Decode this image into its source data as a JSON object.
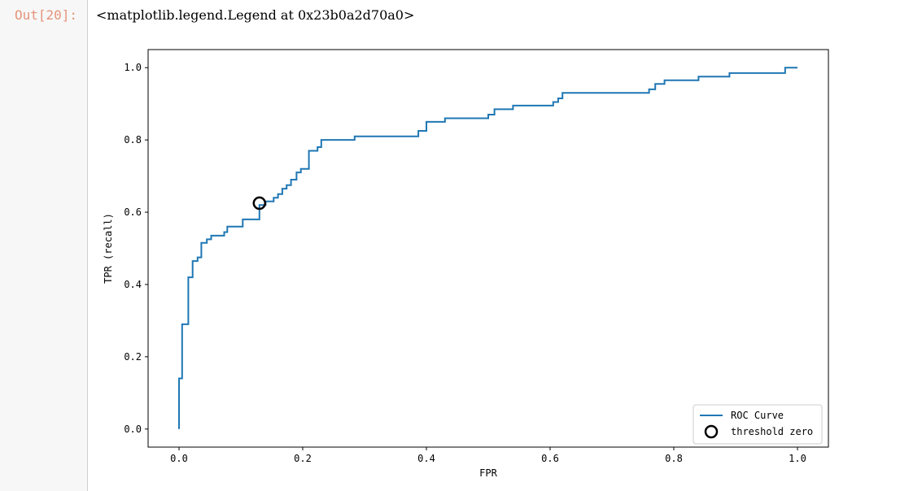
{
  "notebook": {
    "prompt_label": "Out[20]:",
    "output_repr": "<matplotlib.legend.Legend at 0x23b0a2d70a0>"
  },
  "chart_data": {
    "type": "line",
    "xlabel": "FPR",
    "ylabel": "TPR (recall)",
    "xlim": [
      -0.05,
      1.05
    ],
    "ylim": [
      -0.05,
      1.05
    ],
    "xticks": [
      0.0,
      0.2,
      0.4,
      0.6,
      0.8,
      1.0
    ],
    "yticks": [
      0.0,
      0.2,
      0.4,
      0.6,
      0.8,
      1.0
    ],
    "tick_labels_x": [
      "0.0",
      "0.2",
      "0.4",
      "0.6",
      "0.8",
      "1.0"
    ],
    "tick_labels_y": [
      "0.0",
      "0.2",
      "0.4",
      "0.6",
      "0.8",
      "1.0"
    ],
    "grid": false,
    "legend": {
      "position": "lower-right",
      "entries": [
        "ROC Curve",
        "threshold zero"
      ]
    },
    "series": [
      {
        "name": "ROC Curve",
        "kind": "step-line",
        "color": "#1f77b4",
        "points": [
          [
            0.0,
            0.0
          ],
          [
            0.0,
            0.14
          ],
          [
            0.005,
            0.14
          ],
          [
            0.005,
            0.29
          ],
          [
            0.015,
            0.29
          ],
          [
            0.015,
            0.42
          ],
          [
            0.022,
            0.42
          ],
          [
            0.022,
            0.465
          ],
          [
            0.03,
            0.465
          ],
          [
            0.03,
            0.475
          ],
          [
            0.036,
            0.475
          ],
          [
            0.036,
            0.515
          ],
          [
            0.045,
            0.515
          ],
          [
            0.045,
            0.525
          ],
          [
            0.052,
            0.525
          ],
          [
            0.052,
            0.535
          ],
          [
            0.073,
            0.535
          ],
          [
            0.073,
            0.545
          ],
          [
            0.078,
            0.545
          ],
          [
            0.078,
            0.56
          ],
          [
            0.103,
            0.56
          ],
          [
            0.103,
            0.58
          ],
          [
            0.13,
            0.58
          ],
          [
            0.13,
            0.62
          ],
          [
            0.14,
            0.62
          ],
          [
            0.14,
            0.63
          ],
          [
            0.153,
            0.63
          ],
          [
            0.153,
            0.64
          ],
          [
            0.16,
            0.64
          ],
          [
            0.16,
            0.65
          ],
          [
            0.167,
            0.65
          ],
          [
            0.167,
            0.665
          ],
          [
            0.174,
            0.665
          ],
          [
            0.174,
            0.675
          ],
          [
            0.181,
            0.675
          ],
          [
            0.181,
            0.69
          ],
          [
            0.19,
            0.69
          ],
          [
            0.19,
            0.71
          ],
          [
            0.197,
            0.71
          ],
          [
            0.197,
            0.72
          ],
          [
            0.21,
            0.72
          ],
          [
            0.21,
            0.77
          ],
          [
            0.224,
            0.77
          ],
          [
            0.224,
            0.78
          ],
          [
            0.23,
            0.78
          ],
          [
            0.23,
            0.8
          ],
          [
            0.284,
            0.8
          ],
          [
            0.284,
            0.81
          ],
          [
            0.387,
            0.81
          ],
          [
            0.387,
            0.825
          ],
          [
            0.4,
            0.825
          ],
          [
            0.4,
            0.85
          ],
          [
            0.43,
            0.85
          ],
          [
            0.43,
            0.86
          ],
          [
            0.5,
            0.86
          ],
          [
            0.5,
            0.87
          ],
          [
            0.51,
            0.87
          ],
          [
            0.51,
            0.885
          ],
          [
            0.54,
            0.885
          ],
          [
            0.54,
            0.895
          ],
          [
            0.605,
            0.895
          ],
          [
            0.605,
            0.905
          ],
          [
            0.613,
            0.905
          ],
          [
            0.613,
            0.915
          ],
          [
            0.62,
            0.915
          ],
          [
            0.62,
            0.93
          ],
          [
            0.76,
            0.93
          ],
          [
            0.76,
            0.94
          ],
          [
            0.77,
            0.94
          ],
          [
            0.77,
            0.955
          ],
          [
            0.785,
            0.955
          ],
          [
            0.785,
            0.965
          ],
          [
            0.84,
            0.965
          ],
          [
            0.84,
            0.975
          ],
          [
            0.89,
            0.975
          ],
          [
            0.89,
            0.985
          ],
          [
            0.98,
            0.985
          ],
          [
            0.98,
            1.0
          ],
          [
            1.0,
            1.0
          ]
        ]
      },
      {
        "name": "threshold zero",
        "kind": "marker",
        "marker": "open-circle",
        "color": "#000000",
        "points": [
          [
            0.13,
            0.625
          ]
        ]
      }
    ]
  }
}
